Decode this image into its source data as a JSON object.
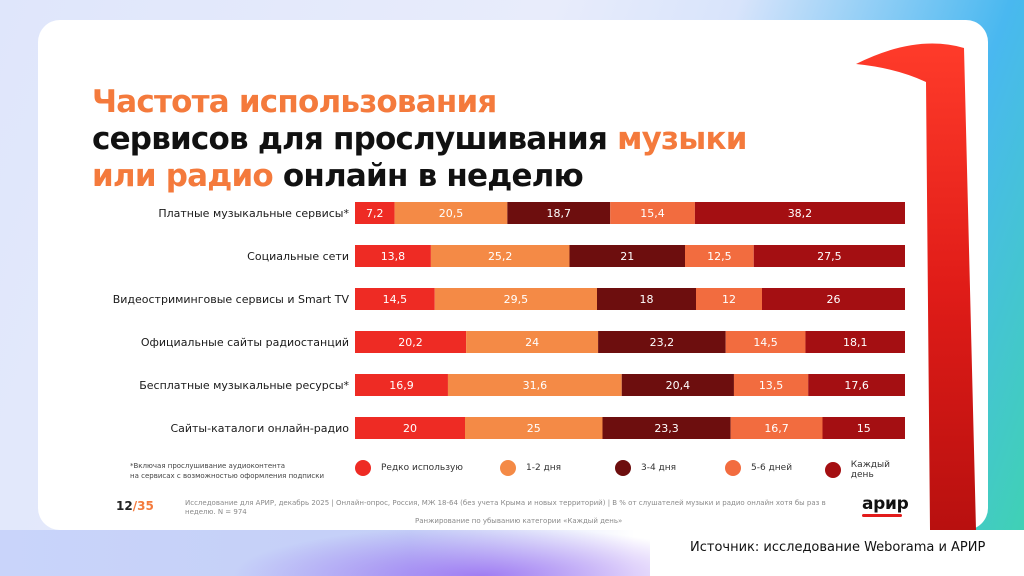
{
  "title": {
    "line1": "Частота использования",
    "line2_a": "сервисов для прослушивания ",
    "line2_b": "музыки",
    "line3_a": "или радио",
    "line3_b": " онлайн в неделю"
  },
  "colors": {
    "title_accent": "#f47a3c",
    "series": [
      "#ee2b24",
      "#f48a46",
      "#6d0e0e",
      "#f26c3f",
      "#a40f12"
    ]
  },
  "chart_data": {
    "type": "bar",
    "orientation": "horizontal",
    "stacked": true,
    "unit": "%",
    "categories": [
      "Платные музыкальные сервисы*",
      "Социальные сети",
      "Видеостриминговые сервисы и Smart TV",
      "Официальные сайты радиостанций",
      "Бесплатные музыкальные ресурсы*",
      "Сайты-каталоги онлайн-радио"
    ],
    "series": [
      {
        "name": "Редко использую",
        "values": [
          7.2,
          13.8,
          14.5,
          20.2,
          16.9,
          20
        ]
      },
      {
        "name": "1-2 дня",
        "values": [
          20.5,
          25.2,
          29.5,
          24,
          31.6,
          25
        ]
      },
      {
        "name": "3-4 дня",
        "values": [
          18.7,
          21,
          18,
          23.2,
          20.4,
          23.3
        ]
      },
      {
        "name": "5-6 дней",
        "values": [
          15.4,
          12.5,
          12,
          14.5,
          13.5,
          16.7
        ]
      },
      {
        "name": "Каждый день",
        "values": [
          38.2,
          27.5,
          26,
          18.1,
          17.6,
          15
        ]
      }
    ],
    "value_labels": [
      [
        "7,2",
        "20,5",
        "18,7",
        "15,4",
        "38,2"
      ],
      [
        "13,8",
        "25,2",
        "21",
        "12,5",
        "27,5"
      ],
      [
        "14,5",
        "29,5",
        "18",
        "12",
        "26"
      ],
      [
        "20,2",
        "24",
        "23,2",
        "14,5",
        "18,1"
      ],
      [
        "16,9",
        "31,6",
        "20,4",
        "13,5",
        "17,6"
      ],
      [
        "20",
        "25",
        "23,3",
        "16,7",
        "15"
      ]
    ],
    "xlim": [
      0,
      100
    ],
    "legend_position": "bottom"
  },
  "footnote": {
    "line1": "*Включая прослушивание аудиоконтента",
    "line2": "на сервисах с возможностью оформления подписки"
  },
  "page": {
    "current": "12",
    "separator": "/",
    "total": "35"
  },
  "meta": {
    "line1": "Исследование для АРИР, декабрь 2025  |  Онлайн-опрос, Россия, МЖ 18-64 (без учета Крыма и новых территорий)  |  В % от слушателей музыки и радио онлайн хотя бы раз в неделю. N = 974",
    "line2": "Ранжирование по убыванию категории «Каждый день»"
  },
  "logo": "арир",
  "source": "Источник: исследование Weborama и АРИР"
}
